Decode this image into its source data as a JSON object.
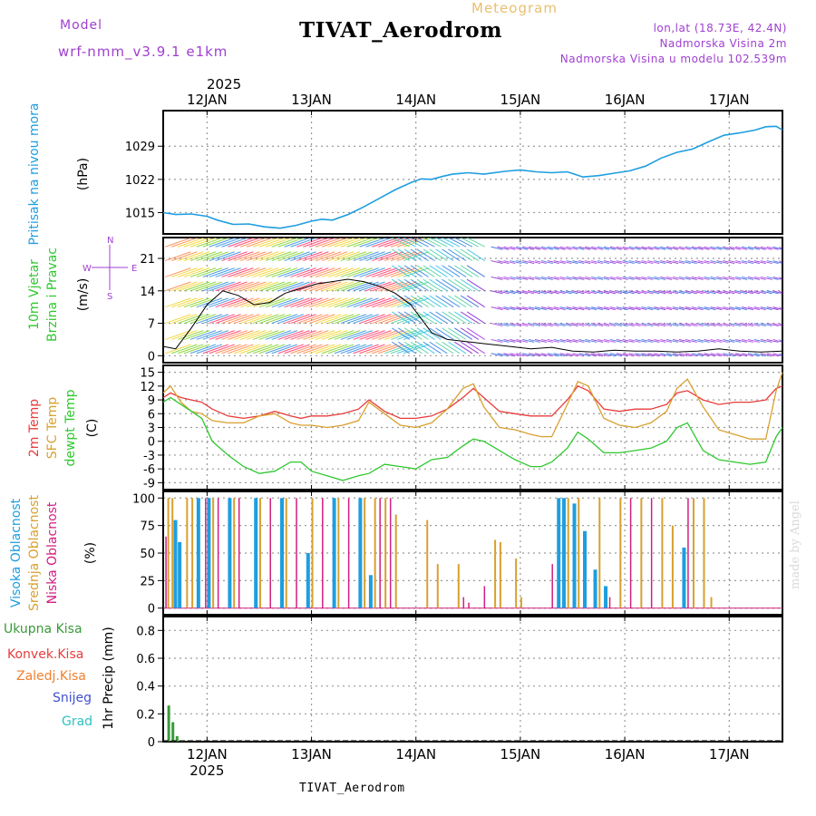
{
  "header": {
    "title": "TIVAT_Aerodrom",
    "meteogram_label": "Meteogram",
    "model_label": "Model",
    "model_version": "wrf-nmm_v3.9.1 e1km",
    "lonlat": "lon,lat (18.73E, 42.4N)",
    "altitude": "Nadmorska Visina 2m",
    "model_altitude": "Nadmorska Visina u modelu 102.539m",
    "year": "2025",
    "footer_title": "TIVAT_Aerodrom",
    "signature": "made by Angel"
  },
  "colors": {
    "pressure": "#1e9ee0",
    "temp2m": "#e83c3c",
    "sfc": "#d8a030",
    "dewpt": "#2ec82e",
    "high_cloud": "#1e9ee0",
    "mid_cloud": "#d8a030",
    "low_cloud": "#d02080",
    "wind_label": "#2ec82e",
    "precip_total": "#3a9a3a"
  },
  "chart_data": [
    {
      "type": "line",
      "panel": "pressure",
      "title": "Pritisak na nivou mora",
      "ylabel": "(hPa)",
      "yticks": [
        1015,
        1022,
        1029
      ],
      "ylim": [
        1010.5,
        1036.5
      ],
      "xticks": [
        "12JAN",
        "13JAN",
        "14JAN",
        "15JAN",
        "16JAN",
        "17JAN"
      ],
      "xlim": [
        11.58,
        17.51
      ],
      "x": [
        11.58,
        11.7,
        11.85,
        12.0,
        12.1,
        12.25,
        12.4,
        12.55,
        12.7,
        12.85,
        13.0,
        13.1,
        13.2,
        13.35,
        13.5,
        13.65,
        13.8,
        13.95,
        14.05,
        14.15,
        14.25,
        14.35,
        14.5,
        14.65,
        14.85,
        15.0,
        15.15,
        15.3,
        15.45,
        15.6,
        15.75,
        15.9,
        16.05,
        16.2,
        16.35,
        16.5,
        16.65,
        16.8,
        16.95,
        17.1,
        17.25,
        17.35,
        17.45,
        17.51
      ],
      "values": [
        1015.0,
        1014.6,
        1014.7,
        1014.2,
        1013.4,
        1012.5,
        1012.6,
        1012.0,
        1011.7,
        1012.3,
        1013.2,
        1013.6,
        1013.4,
        1014.6,
        1016.2,
        1018.0,
        1019.8,
        1021.3,
        1022.1,
        1022.0,
        1022.6,
        1023.1,
        1023.4,
        1023.1,
        1023.7,
        1024.0,
        1023.6,
        1023.4,
        1023.6,
        1022.5,
        1022.8,
        1023.3,
        1023.8,
        1024.8,
        1026.5,
        1027.7,
        1028.4,
        1029.9,
        1031.3,
        1031.8,
        1032.4,
        1033.1,
        1033.2,
        1032.4
      ]
    },
    {
      "type": "line",
      "panel": "wind",
      "title": "10m Vjetar Brzina i Pravac",
      "ylabel": "(m/s)",
      "yticks": [
        0,
        7,
        14,
        21
      ],
      "ylim": [
        -1.5,
        25.5
      ],
      "compass": [
        "W",
        "E",
        "N",
        "S"
      ],
      "x": [
        11.58,
        11.7,
        11.85,
        12.0,
        12.15,
        12.3,
        12.45,
        12.6,
        12.75,
        12.9,
        13.05,
        13.2,
        13.35,
        13.5,
        13.65,
        13.8,
        13.95,
        14.05,
        14.15,
        14.3,
        14.5,
        14.7,
        14.9,
        15.1,
        15.3,
        15.5,
        15.7,
        15.9,
        16.1,
        16.3,
        16.5,
        16.7,
        16.9,
        17.1,
        17.3,
        17.51
      ],
      "values": [
        2.0,
        1.5,
        6.0,
        11.0,
        14.0,
        13.0,
        11.0,
        11.5,
        13.5,
        14.5,
        15.5,
        16.0,
        16.5,
        16.0,
        15.0,
        13.5,
        11.0,
        8.0,
        5.0,
        3.5,
        3.0,
        2.5,
        2.0,
        1.5,
        1.8,
        1.0,
        0.8,
        1.2,
        1.0,
        1.0,
        0.8,
        1.0,
        1.5,
        1.0,
        0.8,
        1.0
      ]
    },
    {
      "type": "line",
      "panel": "temperature",
      "ylabel": "(C)",
      "series_labels": [
        "2m Temp",
        "SFC Temp",
        "dewpt Temp"
      ],
      "yticks": [
        -9,
        -6,
        -3,
        0,
        3,
        6,
        9,
        12,
        15
      ],
      "ylim": [
        -10.5,
        16.5
      ],
      "x": [
        11.58,
        11.65,
        11.75,
        11.85,
        11.95,
        12.05,
        12.2,
        12.35,
        12.5,
        12.65,
        12.8,
        12.9,
        13.0,
        13.15,
        13.3,
        13.45,
        13.55,
        13.7,
        13.85,
        14.0,
        14.15,
        14.3,
        14.45,
        14.55,
        14.65,
        14.8,
        14.95,
        15.1,
        15.2,
        15.3,
        15.45,
        15.55,
        15.65,
        15.8,
        15.95,
        16.1,
        16.25,
        16.4,
        16.5,
        16.6,
        16.75,
        16.9,
        17.05,
        17.2,
        17.35,
        17.45,
        17.51
      ],
      "series": [
        {
          "name": "2m Temp",
          "values": [
            9.5,
            10.5,
            9.5,
            9.0,
            8.5,
            7.0,
            5.5,
            5.0,
            5.5,
            6.5,
            5.5,
            5.0,
            5.5,
            5.5,
            6.0,
            7.0,
            9.0,
            6.5,
            5.0,
            5.0,
            5.5,
            7.0,
            9.5,
            11.5,
            9.5,
            6.5,
            6.0,
            5.5,
            5.5,
            5.5,
            9.0,
            12.0,
            11.0,
            7.0,
            6.5,
            7.0,
            7.0,
            8.0,
            10.5,
            11.0,
            9.0,
            8.0,
            8.5,
            8.5,
            9.0,
            11.5,
            12.0
          ]
        },
        {
          "name": "SFC Temp",
          "values": [
            10.5,
            12.0,
            8.5,
            6.5,
            6.0,
            4.5,
            4.0,
            4.0,
            5.5,
            6.0,
            4.0,
            3.5,
            3.5,
            3.0,
            3.5,
            4.5,
            8.5,
            6.0,
            3.5,
            3.0,
            4.0,
            7.0,
            11.5,
            12.5,
            7.5,
            3.0,
            2.5,
            1.5,
            1.0,
            1.0,
            8.0,
            13.0,
            12.0,
            5.0,
            3.5,
            3.0,
            4.0,
            6.5,
            11.5,
            13.5,
            7.5,
            2.5,
            1.5,
            0.5,
            0.5,
            11.0,
            15.0
          ]
        },
        {
          "name": "dewpt Temp",
          "values": [
            8.5,
            9.5,
            8.0,
            6.5,
            5.0,
            0.0,
            -3.0,
            -5.5,
            -7.0,
            -6.5,
            -4.5,
            -4.5,
            -6.5,
            -7.5,
            -8.5,
            -7.5,
            -7.0,
            -5.0,
            -5.5,
            -6.0,
            -4.0,
            -3.5,
            -1.0,
            0.5,
            0.0,
            -2.0,
            -4.0,
            -5.5,
            -5.5,
            -4.5,
            -1.5,
            2.0,
            0.5,
            -2.5,
            -2.5,
            -2.0,
            -1.5,
            0.0,
            3.0,
            4.0,
            -2.0,
            -4.0,
            -4.5,
            -5.0,
            -4.5,
            1.0,
            3.0
          ]
        }
      ]
    },
    {
      "type": "bar",
      "panel": "clouds",
      "ylabel": "(%)",
      "series_labels": [
        "Visoka Oblacnost",
        "Srednja Oblacnost",
        "Niska Oblacnost"
      ],
      "yticks": [
        0,
        25,
        50,
        75,
        100
      ],
      "ylim": [
        -6,
        106
      ],
      "series": [
        {
          "name": "Visoka Oblacnost",
          "x": [
            11.68,
            11.72,
            11.9,
            12.0,
            12.2,
            12.45,
            12.7,
            12.95,
            13.2,
            13.45,
            13.55,
            15.35,
            15.4,
            15.5,
            15.6,
            15.7,
            15.8,
            16.55
          ],
          "values": [
            80,
            60,
            100,
            100,
            100,
            100,
            100,
            50,
            100,
            100,
            30,
            100,
            100,
            95,
            70,
            35,
            20,
            55
          ]
        },
        {
          "name": "Srednja Oblacnost",
          "x": [
            11.62,
            11.66,
            11.8,
            11.85,
            12.05,
            12.25,
            12.5,
            12.75,
            13.0,
            13.25,
            13.5,
            13.6,
            13.7,
            13.8,
            14.1,
            14.2,
            14.4,
            14.75,
            14.8,
            14.95,
            15.0,
            15.45,
            15.55,
            15.75,
            15.95,
            16.15,
            16.35,
            16.45,
            16.65,
            16.75,
            16.82
          ],
          "values": [
            100,
            100,
            100,
            100,
            100,
            100,
            100,
            100,
            100,
            100,
            100,
            100,
            100,
            85,
            80,
            40,
            40,
            62,
            60,
            45,
            10,
            100,
            100,
            100,
            100,
            100,
            100,
            75,
            100,
            100,
            10
          ]
        },
        {
          "name": "Niska Oblacnost",
          "x": [
            11.6,
            11.98,
            12.1,
            12.3,
            12.6,
            12.85,
            13.1,
            13.35,
            13.65,
            13.75,
            14.45,
            14.5,
            14.65,
            15.3,
            15.85,
            16.05,
            16.25,
            16.6
          ],
          "values": [
            65,
            100,
            100,
            100,
            100,
            100,
            100,
            100,
            100,
            100,
            10,
            5,
            20,
            40,
            10,
            100,
            100,
            100
          ]
        }
      ]
    },
    {
      "type": "bar",
      "panel": "precipitation",
      "ylabel": "1hr Precip (mm)",
      "series_labels": [
        "Ukupna Kisa",
        "Konvek.Kisa",
        "Zaledj.Kisa",
        "Snijeg",
        "Grad"
      ],
      "yticks": [
        0,
        0.2,
        0.4,
        0.6,
        0.8
      ],
      "ylim": [
        0,
        0.9
      ],
      "series": [
        {
          "name": "Ukupna Kisa",
          "x": [
            11.62,
            11.66,
            11.7,
            11.75
          ],
          "values": [
            0.26,
            0.14,
            0.04,
            0.01
          ]
        }
      ]
    }
  ]
}
